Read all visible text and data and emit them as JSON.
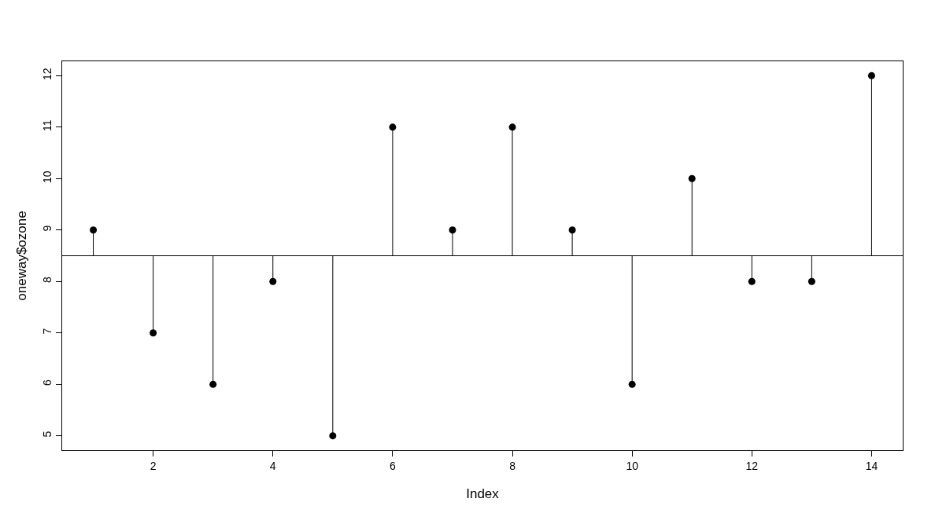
{
  "chart_data": {
    "type": "lollipop",
    "xlabel": "Index",
    "ylabel": "oneway$ozone",
    "x": [
      1,
      2,
      3,
      4,
      5,
      6,
      7,
      8,
      9,
      10,
      11,
      12,
      13,
      14
    ],
    "values": [
      9,
      7,
      6,
      8,
      5,
      11,
      9,
      11,
      9,
      6,
      10,
      8,
      8,
      12
    ],
    "errors": [
      [
        8.5,
        9
      ],
      [
        7,
        8.5
      ],
      [
        6,
        8.5
      ],
      [
        8,
        8.5
      ],
      [
        5,
        8.5
      ],
      [
        8.5,
        11
      ],
      [
        8.5,
        9
      ],
      [
        8.5,
        11
      ],
      [
        8.5,
        9
      ],
      [
        6,
        8.5
      ],
      [
        8.5,
        10
      ],
      [
        8,
        8.5
      ],
      [
        8,
        8.5
      ],
      [
        8.5,
        12
      ]
    ],
    "color": "#000000",
    "marker": "circle",
    "xlim": [
      0.48,
      14.52
    ],
    "xticks": [
      2,
      4,
      6,
      8,
      10,
      12,
      14
    ],
    "ylim": [
      4.72,
      12.28
    ],
    "yticks": [
      5,
      6,
      7,
      8,
      9,
      10,
      11,
      12
    ],
    "ref_lines": [
      {
        "axis": "y",
        "value": 8.5,
        "color": "#000000"
      }
    ]
  }
}
